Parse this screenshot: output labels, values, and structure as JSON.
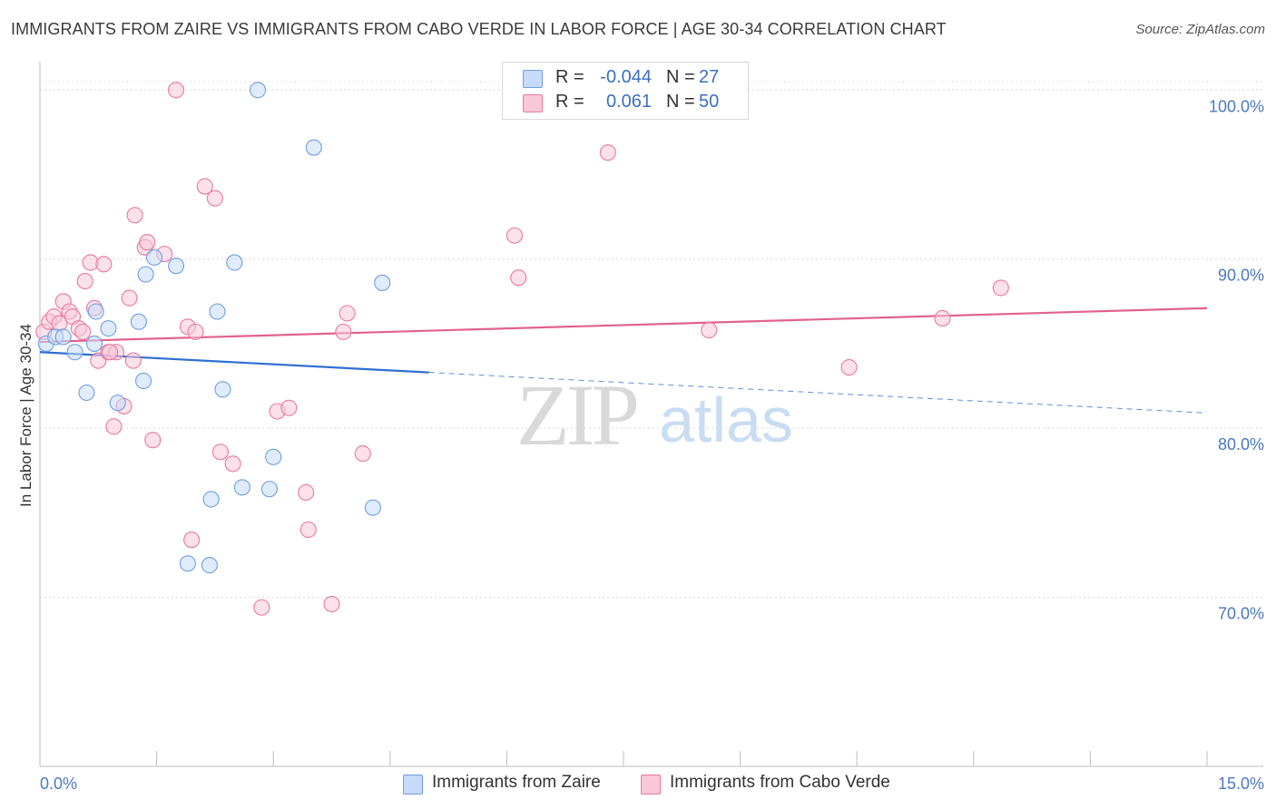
{
  "header": {
    "title": "IMMIGRANTS FROM ZAIRE VS IMMIGRANTS FROM CABO VERDE IN LABOR FORCE | AGE 30-34 CORRELATION CHART",
    "source": "Source: ZipAtlas.com"
  },
  "watermark": {
    "zip": "ZIP",
    "atlas": "atlas"
  },
  "legend": {
    "r_label": "R =",
    "n_label": "N =",
    "series": [
      {
        "r": "-0.044",
        "n": "27"
      },
      {
        "r": "0.061",
        "n": "50"
      }
    ]
  },
  "chart_data": {
    "type": "scatter",
    "title": "IMMIGRANTS FROM ZAIRE VS IMMIGRANTS FROM CABO VERDE IN LABOR FORCE | AGE 30-34 CORRELATION CHART",
    "xlabel": "",
    "ylabel": "In Labor Force | Age 30-34",
    "xlim": [
      0,
      15
    ],
    "ylim": [
      60,
      102
    ],
    "x_tick_labels": [
      "0.0%",
      "15.0%"
    ],
    "y_ticks": [
      70,
      80,
      90,
      100
    ],
    "y_tick_labels": [
      "70.0%",
      "80.0%",
      "90.0%",
      "100.0%"
    ],
    "grid": true,
    "legend_position": "top-center",
    "series": [
      {
        "name": "Immigrants from Zaire",
        "color": "#6e9fe0",
        "fill": "#c6dbf7",
        "r": -0.044,
        "n": 27,
        "trend": {
          "x0": 0,
          "y0": 84.5,
          "x1": 15,
          "y1": 80.9,
          "solid_until": 5.0
        },
        "points": [
          [
            0.08,
            85.0
          ],
          [
            0.2,
            85.4
          ],
          [
            0.3,
            85.4
          ],
          [
            0.45,
            84.5
          ],
          [
            0.6,
            82.1
          ],
          [
            0.72,
            86.9
          ],
          [
            0.88,
            85.9
          ],
          [
            1.0,
            81.5
          ],
          [
            0.7,
            85.0
          ],
          [
            1.27,
            86.3
          ],
          [
            1.33,
            82.8
          ],
          [
            1.36,
            89.1
          ],
          [
            1.47,
            90.1
          ],
          [
            1.75,
            89.6
          ],
          [
            2.18,
            71.9
          ],
          [
            2.2,
            75.8
          ],
          [
            2.28,
            86.9
          ],
          [
            2.35,
            82.3
          ],
          [
            2.5,
            89.8
          ],
          [
            2.6,
            76.5
          ],
          [
            2.95,
            76.4
          ],
          [
            3.0,
            78.3
          ],
          [
            3.52,
            96.6
          ],
          [
            4.28,
            75.3
          ],
          [
            4.4,
            88.6
          ],
          [
            2.8,
            100.0
          ],
          [
            1.9,
            72.0
          ]
        ]
      },
      {
        "name": "Immigrants from Cabo Verde",
        "color": "#e8779f",
        "fill": "#f9c8d8",
        "r": 0.061,
        "n": 50,
        "trend": {
          "x0": 0,
          "y0": 85.1,
          "x1": 15,
          "y1": 87.1
        },
        "points": [
          [
            0.05,
            85.7
          ],
          [
            0.12,
            86.3
          ],
          [
            0.18,
            86.6
          ],
          [
            0.25,
            86.2
          ],
          [
            0.3,
            87.5
          ],
          [
            0.38,
            86.9
          ],
          [
            0.42,
            86.6
          ],
          [
            0.5,
            85.9
          ],
          [
            0.55,
            85.7
          ],
          [
            0.58,
            88.7
          ],
          [
            0.65,
            89.8
          ],
          [
            0.7,
            87.1
          ],
          [
            0.75,
            84.0
          ],
          [
            0.82,
            89.7
          ],
          [
            0.88,
            84.5
          ],
          [
            0.95,
            80.1
          ],
          [
            0.98,
            84.5
          ],
          [
            1.08,
            81.3
          ],
          [
            1.15,
            87.7
          ],
          [
            1.2,
            84.0
          ],
          [
            1.22,
            92.6
          ],
          [
            1.35,
            90.7
          ],
          [
            1.38,
            91.0
          ],
          [
            1.45,
            79.3
          ],
          [
            1.6,
            90.3
          ],
          [
            1.75,
            100.0
          ],
          [
            1.9,
            86.0
          ],
          [
            1.95,
            73.4
          ],
          [
            2.0,
            85.7
          ],
          [
            2.12,
            94.3
          ],
          [
            2.25,
            93.6
          ],
          [
            2.32,
            78.6
          ],
          [
            2.48,
            77.9
          ],
          [
            2.85,
            69.4
          ],
          [
            3.05,
            81.0
          ],
          [
            3.2,
            81.2
          ],
          [
            3.42,
            76.2
          ],
          [
            3.45,
            74.0
          ],
          [
            3.75,
            69.6
          ],
          [
            3.9,
            85.7
          ],
          [
            3.95,
            86.8
          ],
          [
            4.15,
            78.5
          ],
          [
            6.1,
            91.4
          ],
          [
            6.15,
            88.9
          ],
          [
            7.3,
            96.3
          ],
          [
            8.6,
            85.8
          ],
          [
            10.4,
            83.6
          ],
          [
            11.6,
            86.5
          ],
          [
            12.35,
            88.3
          ],
          [
            0.9,
            84.5
          ]
        ]
      }
    ]
  },
  "bottom_legend": [
    {
      "label": "Immigrants from Zaire"
    },
    {
      "label": "Immigrants from Cabo Verde"
    }
  ]
}
